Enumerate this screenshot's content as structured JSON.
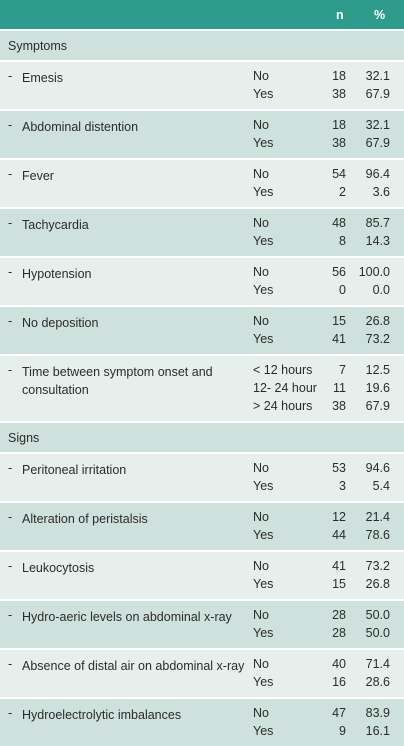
{
  "header": {
    "col_n": "n",
    "col_pct": "%"
  },
  "sections": [
    {
      "title": "Symptoms",
      "items": [
        {
          "label": "Emesis",
          "levels": [
            {
              "level": "No",
              "n": "18",
              "pct": "32.1"
            },
            {
              "level": "Yes",
              "n": "38",
              "pct": "67.9"
            }
          ]
        },
        {
          "label": "Abdominal distention",
          "levels": [
            {
              "level": "No",
              "n": "18",
              "pct": "32.1"
            },
            {
              "level": "Yes",
              "n": "38",
              "pct": "67.9"
            }
          ]
        },
        {
          "label": "Fever",
          "levels": [
            {
              "level": "No",
              "n": "54",
              "pct": "96.4"
            },
            {
              "level": "Yes",
              "n": "2",
              "pct": "3.6"
            }
          ]
        },
        {
          "label": "Tachycardia",
          "levels": [
            {
              "level": "No",
              "n": "48",
              "pct": "85.7"
            },
            {
              "level": "Yes",
              "n": "8",
              "pct": "14.3"
            }
          ]
        },
        {
          "label": "Hypotension",
          "levels": [
            {
              "level": "No",
              "n": "56",
              "pct": "100.0"
            },
            {
              "level": "Yes",
              "n": "0",
              "pct": "0.0"
            }
          ]
        },
        {
          "label": "No deposition",
          "levels": [
            {
              "level": "No",
              "n": "15",
              "pct": "26.8"
            },
            {
              "level": "Yes",
              "n": "41",
              "pct": "73.2"
            }
          ]
        },
        {
          "label": "Time between symptom onset and consultation",
          "levels": [
            {
              "level": "< 12 hours",
              "n": "7",
              "pct": "12.5"
            },
            {
              "level": "12- 24 hour",
              "n": "11",
              "pct": "19.6"
            },
            {
              "level": "> 24 hours",
              "n": "38",
              "pct": "67.9"
            }
          ]
        }
      ]
    },
    {
      "title": "Signs",
      "items": [
        {
          "label": "Peritoneal irritation",
          "levels": [
            {
              "level": "No",
              "n": "53",
              "pct": "94.6"
            },
            {
              "level": "Yes",
              "n": "3",
              "pct": "5.4"
            }
          ]
        },
        {
          "label": "Alteration of peristalsis",
          "levels": [
            {
              "level": "No",
              "n": "12",
              "pct": "21.4"
            },
            {
              "level": "Yes",
              "n": "44",
              "pct": "78.6"
            }
          ]
        },
        {
          "label": "Leukocytosis",
          "levels": [
            {
              "level": "No",
              "n": "41",
              "pct": "73.2"
            },
            {
              "level": "Yes",
              "n": "15",
              "pct": "26.8"
            }
          ]
        },
        {
          "label": "Hydro-aeric levels on abdominal x-ray",
          "levels": [
            {
              "level": "No",
              "n": "28",
              "pct": "50.0"
            },
            {
              "level": "Yes",
              "n": "28",
              "pct": "50.0"
            }
          ]
        },
        {
          "label": "Absence of distal air on abdominal x-ray",
          "levels": [
            {
              "level": "No",
              "n": "40",
              "pct": "71.4"
            },
            {
              "level": "Yes",
              "n": "16",
              "pct": "28.6"
            }
          ]
        },
        {
          "label": "Hydroelectrolytic imbalances",
          "levels": [
            {
              "level": "No",
              "n": "47",
              "pct": "83.9"
            },
            {
              "level": "Yes",
              "n": "9",
              "pct": "16.1"
            }
          ]
        }
      ]
    }
  ]
}
